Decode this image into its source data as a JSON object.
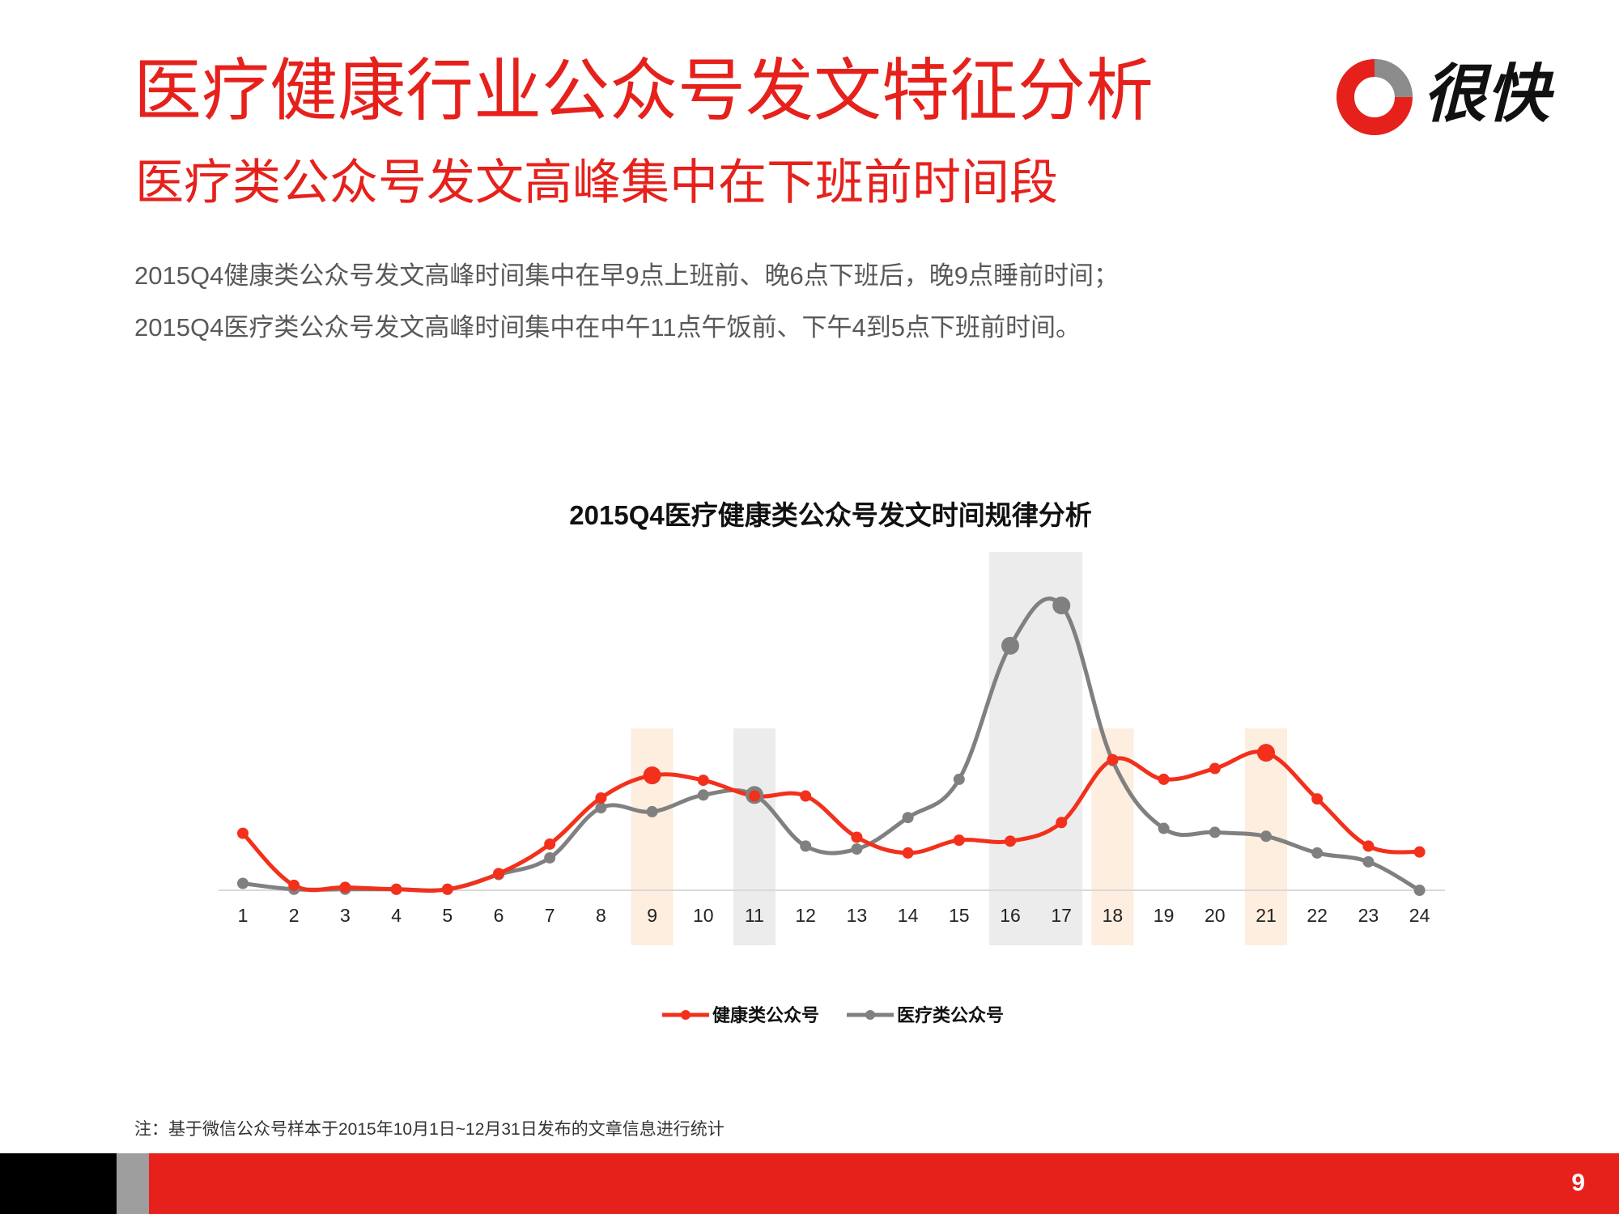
{
  "header": {
    "title": "医疗健康行业公众号发文特征分析",
    "subtitle": "医疗类公众号发文高峰集中在下班前时间段",
    "desc_lines": [
      "2015Q4健康类公众号发文高峰时间集中在早9点上班前、晚6点下班后，晚9点睡前时间；",
      "2015Q4医疗类公众号发文高峰时间集中在中午11点午饭前、下午4到5点下班前时间。"
    ],
    "logo_text": "很快"
  },
  "chart_data": {
    "type": "line",
    "title": "2015Q4医疗健康类公众号发文时间规律分析",
    "xlabel": "",
    "ylabel": "",
    "x": [
      1,
      2,
      3,
      4,
      5,
      6,
      7,
      8,
      9,
      10,
      11,
      12,
      13,
      14,
      15,
      16,
      17,
      18,
      19,
      20,
      21,
      22,
      23,
      24
    ],
    "ylim": [
      0,
      300
    ],
    "series": [
      {
        "name": "健康类公众号",
        "color": "#f2301b",
        "values": [
          58,
          5,
          3,
          1,
          1,
          17,
          47,
          94,
          117,
          112,
          96,
          96,
          54,
          38,
          51,
          50,
          69,
          133,
          113,
          124,
          140,
          93,
          45,
          39
        ],
        "highlight_x": [
          9,
          21
        ]
      },
      {
        "name": "医疗类公众号",
        "color": "#808080",
        "values": [
          7,
          1,
          1,
          1,
          1,
          16,
          33,
          84,
          80,
          97,
          97,
          45,
          42,
          74,
          113,
          249,
          290,
          132,
          63,
          59,
          55,
          38,
          29,
          0
        ],
        "highlight_x": [
          11,
          16,
          17
        ]
      }
    ],
    "highlight_bands": [
      {
        "x": [
          9
        ],
        "color": "#fdeee0"
      },
      {
        "x": [
          11
        ],
        "color": "#ececec"
      },
      {
        "x": [
          16,
          17
        ],
        "color": "#ececec"
      },
      {
        "x": [
          18
        ],
        "color": "#fdeee0"
      },
      {
        "x": [
          21
        ],
        "color": "#fdeee0"
      }
    ],
    "grid": false,
    "legend_position": "bottom"
  },
  "note": "注：基于微信公众号样本于2015年10月1日~12月31日发布的文章信息进行统计",
  "footer": {
    "page_number": "9"
  }
}
